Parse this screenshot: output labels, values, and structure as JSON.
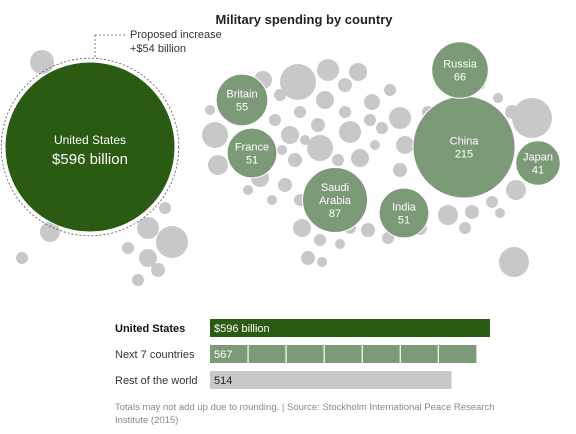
{
  "chart_data": {
    "type": "bubble-and-bar",
    "title": "Military spending by country",
    "annotation": {
      "line1": "Proposed increase",
      "line2": "+$54 billion"
    },
    "bubbles": [
      {
        "name": "United States",
        "value": 596,
        "value_label": "$596 billion"
      },
      {
        "name": "China",
        "value": 215,
        "value_label": "215"
      },
      {
        "name": "Saudi Arabia",
        "name_lines": [
          "Saudi",
          "Arabia"
        ],
        "value": 87,
        "value_label": "87"
      },
      {
        "name": "Russia",
        "value": 66,
        "value_label": "66"
      },
      {
        "name": "Britain",
        "value": 55,
        "value_label": "55"
      },
      {
        "name": "France",
        "value": 51,
        "value_label": "51"
      },
      {
        "name": "India",
        "value": 51,
        "value_label": "51"
      },
      {
        "name": "Japan",
        "value": 41,
        "value_label": "41"
      }
    ],
    "bars": [
      {
        "label": "United States",
        "value": 596,
        "value_label": "$596 billion",
        "segments": 1
      },
      {
        "label": "Next 7 countries",
        "value": 567,
        "value_label": "567",
        "segments": 7
      },
      {
        "label": "Rest of the world",
        "value": 514,
        "value_label": "514",
        "segments": 1
      }
    ],
    "footnote": "Totals may not add up due to rounding. | Source: Stockholm International Peace Research Institute (2015)"
  },
  "colors": {
    "us": "#2b5a12",
    "next7": "#7d9a78",
    "rest": "#c8c8c8",
    "text": "#222222"
  }
}
